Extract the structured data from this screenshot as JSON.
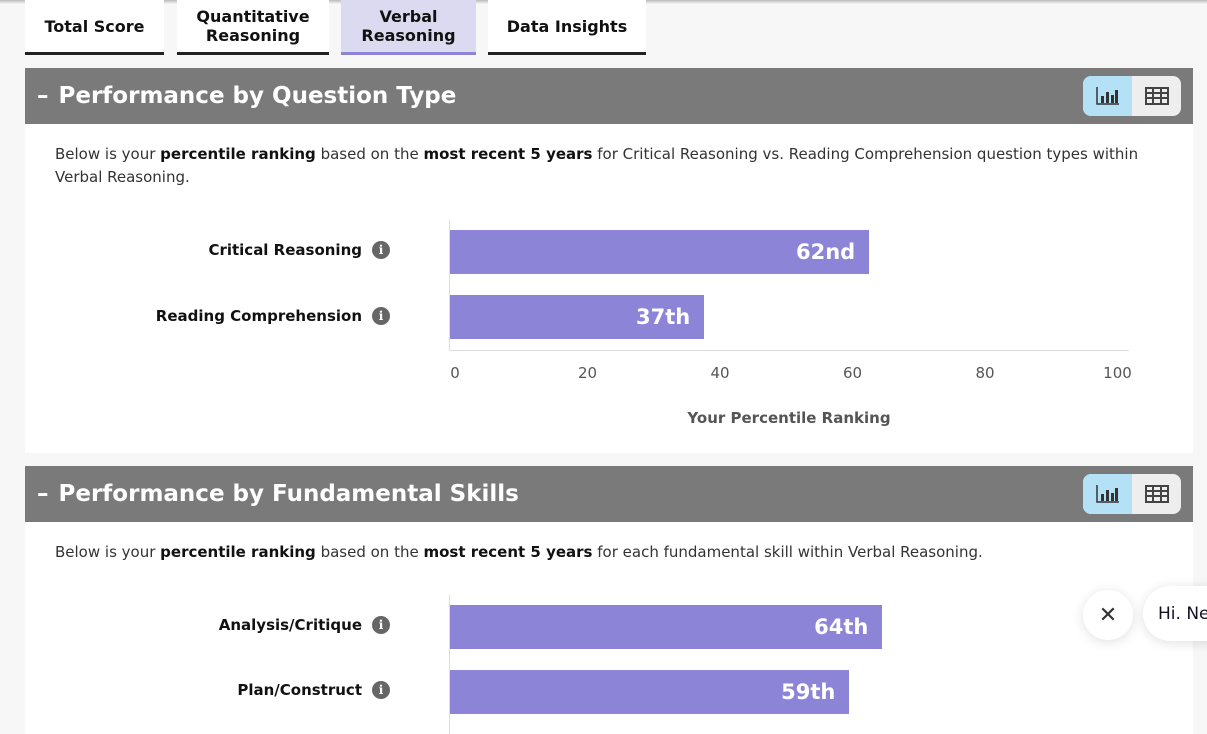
{
  "tabs": [
    {
      "label": "Total Score"
    },
    {
      "label": "Quantitative Reasoning"
    },
    {
      "label": "Verbal Reasoning",
      "active": true
    },
    {
      "label": "Data Insights"
    }
  ],
  "sections": [
    {
      "title": "Performance by Question Type",
      "collapse_icon": "minus",
      "desc_parts": [
        "Below is your ",
        "percentile ranking",
        " based on the ",
        "most recent 5 years",
        " for Critical Reasoning vs. Reading Comprehension question types within Verbal Reasoning."
      ]
    },
    {
      "title": "Performance by Fundamental Skills",
      "collapse_icon": "minus",
      "desc_parts": [
        "Below is your ",
        "percentile ranking",
        " based on the ",
        "most recent 5 years",
        " for each fundamental skill within Verbal Reasoning."
      ]
    }
  ],
  "view_toggle": {
    "chart_icon": "bar-chart-icon",
    "table_icon": "table-icon",
    "selected": "chart"
  },
  "chart_data": [
    {
      "type": "bar",
      "orientation": "horizontal",
      "categories": [
        "Critical Reasoning",
        "Reading Comprehension"
      ],
      "values": [
        62,
        37
      ],
      "data_labels": [
        "62nd",
        "37th"
      ],
      "xlabel": "Your Percentile Ranking",
      "xlim": [
        0,
        100
      ],
      "ticks": [
        "0",
        "20",
        "40",
        "60",
        "80",
        "100"
      ],
      "color": "#8b84d7"
    },
    {
      "type": "bar",
      "orientation": "horizontal",
      "categories": [
        "Analysis/Critique",
        "Plan/Construct"
      ],
      "values": [
        64,
        59
      ],
      "data_labels": [
        "64th",
        "59th"
      ],
      "xlim": [
        0,
        100
      ],
      "color": "#8b84d7"
    }
  ],
  "chat": {
    "close_icon": "close-icon",
    "greeting": "Hi. Ne"
  }
}
